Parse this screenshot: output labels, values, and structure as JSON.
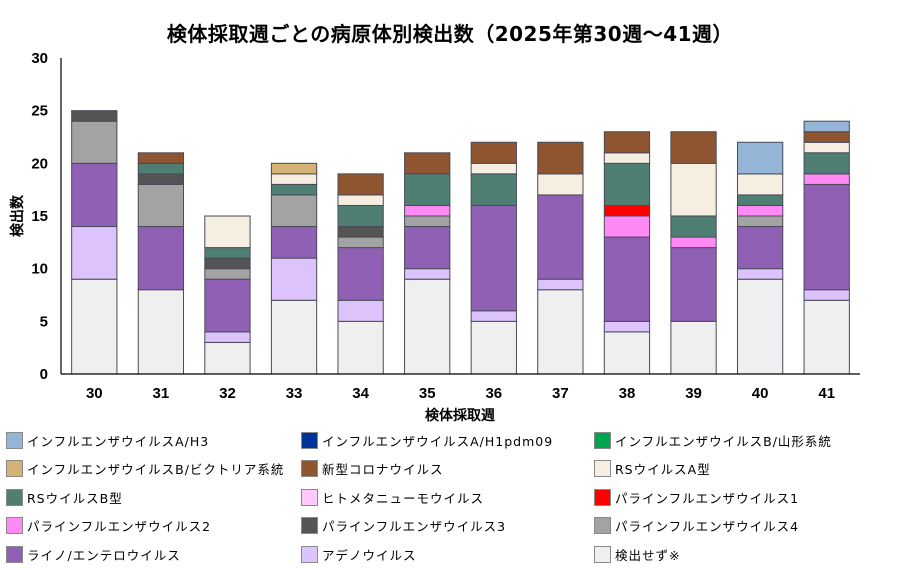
{
  "chart_data": {
    "type": "bar",
    "stacked": true,
    "title": "検体採取週ごとの病原体別検出数（2025年第30週～41週）",
    "xlabel": "検体採取週",
    "ylabel": "検出数",
    "ylim": [
      0,
      30
    ],
    "yticks": [
      0,
      5,
      10,
      15,
      20,
      25,
      30
    ],
    "grid": false,
    "legend_position": "bottom",
    "categories": [
      "30",
      "31",
      "32",
      "33",
      "34",
      "35",
      "36",
      "37",
      "38",
      "39",
      "40",
      "41"
    ],
    "series": [
      {
        "name": "検出せず※",
        "color": "#efefef",
        "values": [
          9,
          8,
          3,
          7,
          5,
          9,
          5,
          8,
          4,
          5,
          9,
          7
        ]
      },
      {
        "name": "アデノウイルス",
        "color": "#dcc3fb",
        "values": [
          5,
          0,
          1,
          4,
          2,
          1,
          1,
          1,
          1,
          0,
          1,
          1
        ]
      },
      {
        "name": "ライノ/エンテロウイルス",
        "color": "#9060b4",
        "values": [
          6,
          6,
          5,
          3,
          5,
          4,
          10,
          8,
          8,
          7,
          4,
          10
        ]
      },
      {
        "name": "パラインフルエンザウイルス4",
        "color": "#a3a3a3",
        "values": [
          4,
          4,
          1,
          3,
          1,
          1,
          0,
          0,
          0,
          0,
          1,
          0
        ]
      },
      {
        "name": "パラインフルエンザウイルス3",
        "color": "#545454",
        "values": [
          1,
          1,
          1,
          0,
          1,
          0,
          0,
          0,
          0,
          0,
          0,
          0
        ]
      },
      {
        "name": "パラインフルエンザウイルス2",
        "color": "#ff8af5",
        "values": [
          0,
          0,
          0,
          0,
          0,
          1,
          0,
          0,
          2,
          1,
          1,
          1
        ]
      },
      {
        "name": "パラインフルエンザウイルス1",
        "color": "#ff0000",
        "values": [
          0,
          0,
          0,
          0,
          0,
          0,
          0,
          0,
          1,
          0,
          0,
          0
        ]
      },
      {
        "name": "ヒトメタニューモウイルス",
        "color": "#ffc9fb",
        "values": [
          0,
          0,
          0,
          0,
          0,
          0,
          0,
          0,
          0,
          0,
          0,
          0
        ]
      },
      {
        "name": "RSウイルスB型",
        "color": "#4f7e72",
        "values": [
          0,
          1,
          1,
          1,
          2,
          3,
          3,
          0,
          4,
          2,
          1,
          2
        ]
      },
      {
        "name": "RSウイルスA型",
        "color": "#f6eee0",
        "values": [
          0,
          0,
          3,
          1,
          1,
          0,
          1,
          2,
          1,
          5,
          2,
          1
        ]
      },
      {
        "name": "新型コロナウイルス",
        "color": "#8f5430",
        "values": [
          0,
          1,
          0,
          0,
          2,
          2,
          2,
          3,
          2,
          3,
          0,
          1
        ]
      },
      {
        "name": "インフルエンザウイルスB/山形系統",
        "color": "#00a550",
        "values": [
          0,
          0,
          0,
          0,
          0,
          0,
          0,
          0,
          0,
          0,
          0,
          0
        ]
      },
      {
        "name": "インフルエンザウイルスB/ビクトリア系統",
        "color": "#d4b174",
        "values": [
          0,
          0,
          0,
          1,
          0,
          0,
          0,
          0,
          0,
          0,
          0,
          0
        ]
      },
      {
        "name": "インフルエンザウイルスA/H1pdm09",
        "color": "#003399",
        "values": [
          0,
          0,
          0,
          0,
          0,
          0,
          0,
          0,
          0,
          0,
          0,
          0
        ]
      },
      {
        "name": "インフルエンザウイルスA/H3",
        "color": "#94b5d6",
        "values": [
          0,
          0,
          0,
          0,
          0,
          0,
          0,
          0,
          0,
          0,
          3,
          1
        ]
      }
    ],
    "totals": [
      25,
      21,
      15,
      20,
      19,
      21,
      22,
      22,
      23,
      23,
      22,
      24
    ],
    "legend_order": [
      "インフルエンザウイルスA/H3",
      "インフルエンザウイルスA/H1pdm09",
      "インフルエンザウイルスB/山形系統",
      "インフルエンザウイルスB/ビクトリア系統",
      "新型コロナウイルス",
      "RSウイルスA型",
      "RSウイルスB型",
      "ヒトメタニューモウイルス",
      "パラインフルエンザウイルス1",
      "パラインフルエンザウイルス2",
      "パラインフルエンザウイルス3",
      "パラインフルエンザウイルス4",
      "ライノ/エンテロウイルス",
      "アデノウイルス",
      "検出せず※"
    ]
  }
}
